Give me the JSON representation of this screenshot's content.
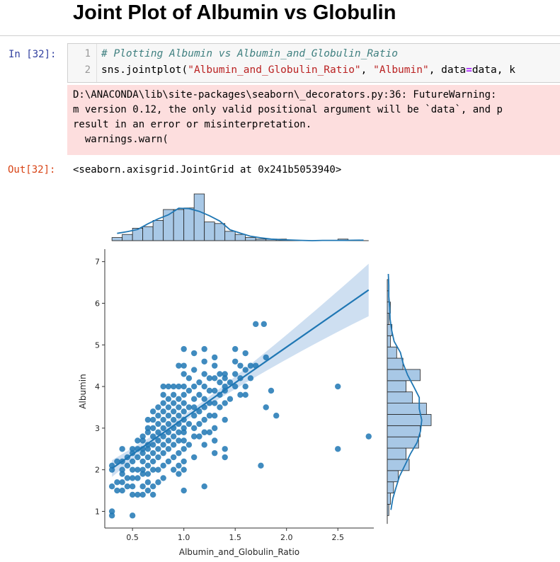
{
  "notebook": {
    "heading": "Joint Plot of Albumin vs Globulin",
    "in_prompt": "In [32]:",
    "out_prompt": "Out[32]:",
    "code_lines": [
      {
        "num": "1",
        "parts": [
          {
            "t": "# Plotting Albumin vs Albumin_and_Globulin_Ratio",
            "c": "comment"
          }
        ]
      },
      {
        "num": "2",
        "parts": [
          {
            "t": "sns.jointplot(",
            "c": "plain"
          },
          {
            "t": "\"Albumin_and_Globulin_Ratio\"",
            "c": "str"
          },
          {
            "t": ", ",
            "c": "plain"
          },
          {
            "t": "\"Albumin\"",
            "c": "str"
          },
          {
            "t": ", data",
            "c": "plain"
          },
          {
            "t": "=",
            "c": "op"
          },
          {
            "t": "data, k",
            "c": "plain"
          }
        ]
      }
    ],
    "warning_lines": [
      "D:\\ANACONDA\\lib\\site-packages\\seaborn\\_decorators.py:36: FutureWarning: ",
      "m version 0.12, the only valid positional argument will be `data`, and p",
      "result in an error or misinterpretation.",
      "  warnings.warn("
    ],
    "output_text": "<seaborn.axisgrid.JointGrid at 0x241b5053940>"
  },
  "chart_data": {
    "type": "scatter",
    "xlabel": "Albumin_and_Globulin_Ratio",
    "ylabel": "Albumin",
    "x_ticks": [
      "0.5",
      "1.0",
      "1.5",
      "2.0",
      "2.5"
    ],
    "y_ticks": [
      "1",
      "2",
      "3",
      "4",
      "5",
      "6",
      "7"
    ],
    "xlim": [
      0.23,
      2.85
    ],
    "ylim": [
      0.6,
      7.3
    ],
    "grid": false,
    "colors": {
      "point": "#1f77b4",
      "fill": "#a8c8e6",
      "ci": "#c5d9ee"
    },
    "points": [
      [
        0.3,
        0.9
      ],
      [
        0.3,
        1.0
      ],
      [
        0.3,
        1.6
      ],
      [
        0.3,
        2.0
      ],
      [
        0.3,
        2.1
      ],
      [
        0.35,
        1.5
      ],
      [
        0.35,
        1.7
      ],
      [
        0.35,
        2.2
      ],
      [
        0.4,
        1.5
      ],
      [
        0.4,
        1.7
      ],
      [
        0.4,
        1.9
      ],
      [
        0.4,
        2.0
      ],
      [
        0.4,
        2.2
      ],
      [
        0.4,
        2.5
      ],
      [
        0.45,
        1.6
      ],
      [
        0.45,
        1.8
      ],
      [
        0.45,
        2.1
      ],
      [
        0.45,
        2.3
      ],
      [
        0.5,
        1.4
      ],
      [
        0.5,
        1.6
      ],
      [
        0.5,
        1.8
      ],
      [
        0.5,
        2.0
      ],
      [
        0.5,
        2.2
      ],
      [
        0.5,
        2.4
      ],
      [
        0.5,
        2.5
      ],
      [
        0.5,
        0.9
      ],
      [
        0.55,
        1.4
      ],
      [
        0.55,
        1.8
      ],
      [
        0.55,
        2.0
      ],
      [
        0.55,
        2.3
      ],
      [
        0.55,
        2.5
      ],
      [
        0.55,
        2.7
      ],
      [
        0.6,
        1.4
      ],
      [
        0.6,
        1.6
      ],
      [
        0.6,
        1.9
      ],
      [
        0.6,
        2.0
      ],
      [
        0.6,
        2.2
      ],
      [
        0.6,
        2.4
      ],
      [
        0.6,
        2.5
      ],
      [
        0.6,
        2.7
      ],
      [
        0.6,
        2.8
      ],
      [
        0.65,
        1.5
      ],
      [
        0.65,
        1.7
      ],
      [
        0.65,
        1.9
      ],
      [
        0.65,
        2.1
      ],
      [
        0.65,
        2.3
      ],
      [
        0.65,
        2.5
      ],
      [
        0.65,
        2.6
      ],
      [
        0.65,
        2.9
      ],
      [
        0.65,
        3.0
      ],
      [
        0.65,
        3.2
      ],
      [
        0.7,
        1.4
      ],
      [
        0.7,
        1.6
      ],
      [
        0.7,
        2.0
      ],
      [
        0.7,
        2.2
      ],
      [
        0.7,
        2.4
      ],
      [
        0.7,
        2.6
      ],
      [
        0.7,
        2.8
      ],
      [
        0.7,
        3.0
      ],
      [
        0.7,
        3.2
      ],
      [
        0.7,
        3.4
      ],
      [
        0.75,
        1.7
      ],
      [
        0.75,
        2.0
      ],
      [
        0.75,
        2.3
      ],
      [
        0.75,
        2.5
      ],
      [
        0.75,
        2.7
      ],
      [
        0.75,
        2.9
      ],
      [
        0.75,
        3.1
      ],
      [
        0.75,
        3.3
      ],
      [
        0.75,
        3.5
      ],
      [
        0.8,
        1.8
      ],
      [
        0.8,
        2.1
      ],
      [
        0.8,
        2.4
      ],
      [
        0.8,
        2.6
      ],
      [
        0.8,
        2.8
      ],
      [
        0.8,
        3.0
      ],
      [
        0.8,
        3.2
      ],
      [
        0.8,
        3.4
      ],
      [
        0.8,
        3.6
      ],
      [
        0.8,
        3.8
      ],
      [
        0.8,
        4.0
      ],
      [
        0.85,
        2.2
      ],
      [
        0.85,
        2.5
      ],
      [
        0.85,
        2.7
      ],
      [
        0.85,
        2.9
      ],
      [
        0.85,
        3.1
      ],
      [
        0.85,
        3.3
      ],
      [
        0.85,
        3.5
      ],
      [
        0.85,
        3.7
      ],
      [
        0.85,
        4.0
      ],
      [
        0.9,
        2.0
      ],
      [
        0.9,
        2.3
      ],
      [
        0.9,
        2.6
      ],
      [
        0.9,
        2.8
      ],
      [
        0.9,
        3.0
      ],
      [
        0.9,
        3.2
      ],
      [
        0.9,
        3.4
      ],
      [
        0.9,
        3.6
      ],
      [
        0.9,
        3.8
      ],
      [
        0.9,
        4.0
      ],
      [
        0.95,
        2.1
      ],
      [
        0.95,
        2.4
      ],
      [
        0.95,
        2.7
      ],
      [
        0.95,
        2.9
      ],
      [
        0.95,
        3.1
      ],
      [
        0.95,
        3.3
      ],
      [
        0.95,
        3.5
      ],
      [
        0.95,
        3.7
      ],
      [
        0.95,
        4.0
      ],
      [
        0.95,
        4.5
      ],
      [
        0.95,
        1.9
      ],
      [
        1.0,
        1.5
      ],
      [
        1.0,
        2.0
      ],
      [
        1.0,
        2.2
      ],
      [
        1.0,
        2.5
      ],
      [
        1.0,
        2.7
      ],
      [
        1.0,
        2.9
      ],
      [
        1.0,
        3.0
      ],
      [
        1.0,
        3.2
      ],
      [
        1.0,
        3.4
      ],
      [
        1.0,
        3.6
      ],
      [
        1.0,
        3.8
      ],
      [
        1.0,
        4.0
      ],
      [
        1.0,
        4.3
      ],
      [
        1.0,
        4.5
      ],
      [
        1.0,
        4.9
      ],
      [
        1.05,
        2.6
      ],
      [
        1.05,
        3.1
      ],
      [
        1.05,
        3.5
      ],
      [
        1.05,
        3.9
      ],
      [
        1.05,
        4.2
      ],
      [
        1.1,
        2.3
      ],
      [
        1.1,
        2.8
      ],
      [
        1.1,
        3.0
      ],
      [
        1.1,
        3.3
      ],
      [
        1.1,
        3.5
      ],
      [
        1.1,
        3.7
      ],
      [
        1.1,
        4.0
      ],
      [
        1.1,
        4.4
      ],
      [
        1.1,
        4.8
      ],
      [
        1.15,
        2.8
      ],
      [
        1.15,
        3.1
      ],
      [
        1.15,
        3.4
      ],
      [
        1.15,
        3.8
      ],
      [
        1.15,
        4.1
      ],
      [
        1.2,
        1.6
      ],
      [
        1.2,
        2.6
      ],
      [
        1.2,
        2.9
      ],
      [
        1.2,
        3.2
      ],
      [
        1.2,
        3.5
      ],
      [
        1.2,
        3.7
      ],
      [
        1.2,
        4.0
      ],
      [
        1.2,
        4.3
      ],
      [
        1.2,
        4.6
      ],
      [
        1.2,
        4.9
      ],
      [
        1.25,
        2.9
      ],
      [
        1.25,
        3.3
      ],
      [
        1.25,
        3.6
      ],
      [
        1.25,
        3.9
      ],
      [
        1.25,
        4.2
      ],
      [
        1.3,
        2.4
      ],
      [
        1.3,
        2.7
      ],
      [
        1.3,
        3.0
      ],
      [
        1.3,
        3.3
      ],
      [
        1.3,
        3.6
      ],
      [
        1.3,
        3.9
      ],
      [
        1.3,
        4.2
      ],
      [
        1.3,
        4.5
      ],
      [
        1.3,
        4.7
      ],
      [
        1.35,
        3.5
      ],
      [
        1.35,
        3.8
      ],
      [
        1.35,
        4.1
      ],
      [
        1.35,
        4.3
      ],
      [
        1.4,
        2.3
      ],
      [
        1.4,
        2.5
      ],
      [
        1.4,
        3.2
      ],
      [
        1.4,
        3.6
      ],
      [
        1.4,
        3.9
      ],
      [
        1.4,
        4.0
      ],
      [
        1.4,
        4.2
      ],
      [
        1.4,
        4.3
      ],
      [
        1.45,
        3.7
      ],
      [
        1.45,
        4.1
      ],
      [
        1.5,
        4.0
      ],
      [
        1.5,
        4.3
      ],
      [
        1.5,
        4.6
      ],
      [
        1.5,
        4.9
      ],
      [
        1.55,
        3.8
      ],
      [
        1.55,
        4.2
      ],
      [
        1.55,
        4.5
      ],
      [
        1.6,
        4.0
      ],
      [
        1.6,
        4.4
      ],
      [
        1.6,
        4.8
      ],
      [
        1.6,
        3.8
      ],
      [
        1.65,
        4.2
      ],
      [
        1.65,
        4.5
      ],
      [
        1.7,
        4.5
      ],
      [
        1.7,
        5.5
      ],
      [
        1.75,
        2.1
      ],
      [
        1.78,
        5.5
      ],
      [
        1.8,
        4.7
      ],
      [
        1.8,
        3.5
      ],
      [
        1.85,
        3.9
      ],
      [
        1.9,
        3.3
      ],
      [
        2.5,
        4.0
      ],
      [
        2.5,
        2.5
      ],
      [
        2.8,
        2.8
      ]
    ],
    "regression": {
      "x0": 0.3,
      "y0": 2.03,
      "x1": 2.8,
      "y1": 6.32
    },
    "x_hist": {
      "edges_start": 0.3,
      "bin_width": 0.1,
      "counts": [
        2,
        4,
        8,
        9,
        13,
        20,
        20,
        21,
        30,
        12,
        11,
        6,
        4,
        2,
        1,
        1,
        1,
        0,
        0,
        0,
        0,
        0,
        1,
        0,
        0
      ]
    },
    "y_hist": {
      "edges_start": 0.9,
      "bin_width": 0.27,
      "counts": [
        1,
        2,
        4,
        7,
        14,
        12,
        20,
        21,
        28,
        25,
        16,
        12,
        21,
        10,
        6,
        2,
        3,
        1,
        2,
        1,
        1,
        0
      ]
    }
  }
}
